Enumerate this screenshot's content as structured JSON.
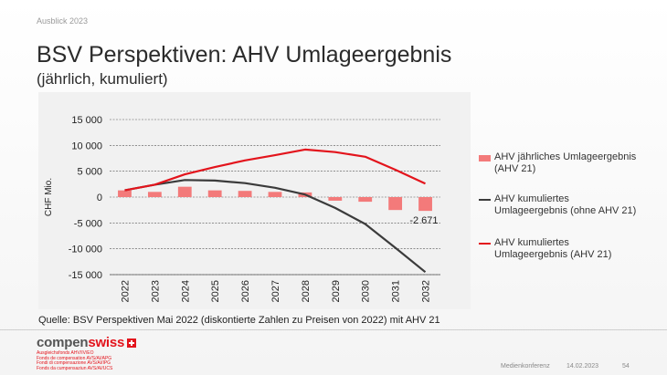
{
  "header": {
    "kicker": "Ausblick 2023",
    "title": "BSV Perspektiven: AHV Umlageergebnis",
    "subtitle": "(jährlich, kumuliert)"
  },
  "chart_data": {
    "type": "bar",
    "ylabel": "CHF Mio.",
    "ylim": [
      -15000,
      15000
    ],
    "yticks": [
      15000,
      10000,
      5000,
      0,
      -5000,
      -10000,
      -15000
    ],
    "ytick_labels": [
      "15 000",
      "10 000",
      "5 000",
      "0",
      "-5 000",
      "-10 000",
      "-15 000"
    ],
    "grid": true,
    "legend_position": "right",
    "categories": [
      "2022",
      "2023",
      "2024",
      "2025",
      "2026",
      "2027",
      "2028",
      "2029",
      "2030",
      "2031",
      "2032"
    ],
    "series": [
      {
        "name": "AHV jährliches Umlageergebnis (AHV 21)",
        "type": "bar",
        "color": "#f37a7a",
        "values": [
          1300,
          1000,
          2000,
          1300,
          1200,
          1000,
          900,
          -700,
          -900,
          -2500,
          -2671
        ]
      },
      {
        "name": "AHV kumuliertes Umlageergebnis (ohne AHV 21)",
        "type": "line",
        "color": "#3b3b3b",
        "values": [
          1300,
          2400,
          3300,
          3200,
          2700,
          1800,
          500,
          -2100,
          -5200,
          -9800,
          -14500
        ]
      },
      {
        "name": "AHV kumuliertes Umlageergebnis (AHV 21)",
        "type": "line",
        "color": "#e3141c",
        "values": [
          1300,
          2400,
          4400,
          5800,
          7100,
          8100,
          9200,
          8700,
          7800,
          5300,
          2600
        ]
      }
    ],
    "annotations": [
      {
        "category": "2032",
        "series": 0,
        "text": "-2 671"
      }
    ]
  },
  "legend": [
    {
      "line1": "AHV jährliches Umlageergebnis",
      "line2": "(AHV 21)"
    },
    {
      "line1": "AHV kumuliertes",
      "line2": "Umlageergebnis (ohne AHV 21)"
    },
    {
      "line1": "AHV kumuliertes",
      "line2": "Umlageergebnis (AHV 21)"
    }
  ],
  "source": "Quelle: BSV Perspektiven Mai 2022 (diskontierte Zahlen zu Preisen von 2022) mit AHV 21",
  "footer": {
    "logo_prefix": "compen",
    "logo_suffix": "swiss",
    "logo_lines": [
      "Ausgleichsfonds AHV/IV/EO",
      "Fonds de compensation AVS/AI/APG",
      "Fondi di compensazione AVS/AI/IPG",
      "Fonds da cumpensaziun AVS/AI/UCS"
    ],
    "event": "Medienkonferenz",
    "date": "14.02.2023",
    "page": "54"
  }
}
